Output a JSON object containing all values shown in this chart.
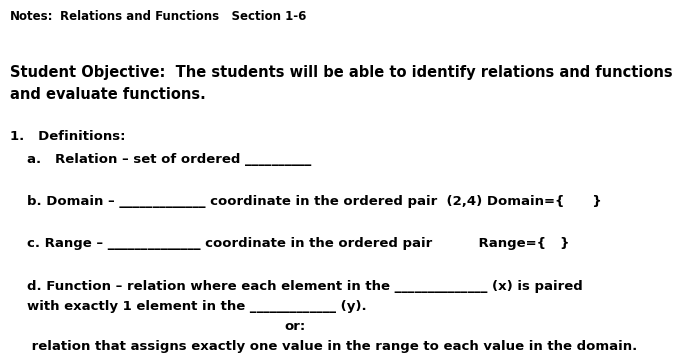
{
  "background_color": "#ffffff",
  "header_label": "Notes:",
  "header_title": "Relations and Functions   Section 1-6",
  "objective_line1": "Student Objective:  The students will be able to identify relations and functions",
  "objective_line2": "and evaluate functions.",
  "section_num": "1.   Definitions:",
  "item_a": "a.   Relation – set of ordered __________",
  "item_b": "b. Domain – _____________ coordinate in the ordered pair  (2,4) Domain={      }",
  "item_c": "c. Range – ______________ coordinate in the ordered pair          Range={   }",
  "item_d1": "d. Function – relation where each element in the ______________ (x) is paired",
  "item_d2": "with exactly 1 element in the _____________ (y).",
  "item_d3": "or:",
  "item_d4": " relation that assigns exactly one value in the range to each value in the domain.",
  "font_family": "DejaVu Sans",
  "header_fontsize": 8.5,
  "objective_fontsize": 10.5,
  "body_fontsize": 9.5
}
